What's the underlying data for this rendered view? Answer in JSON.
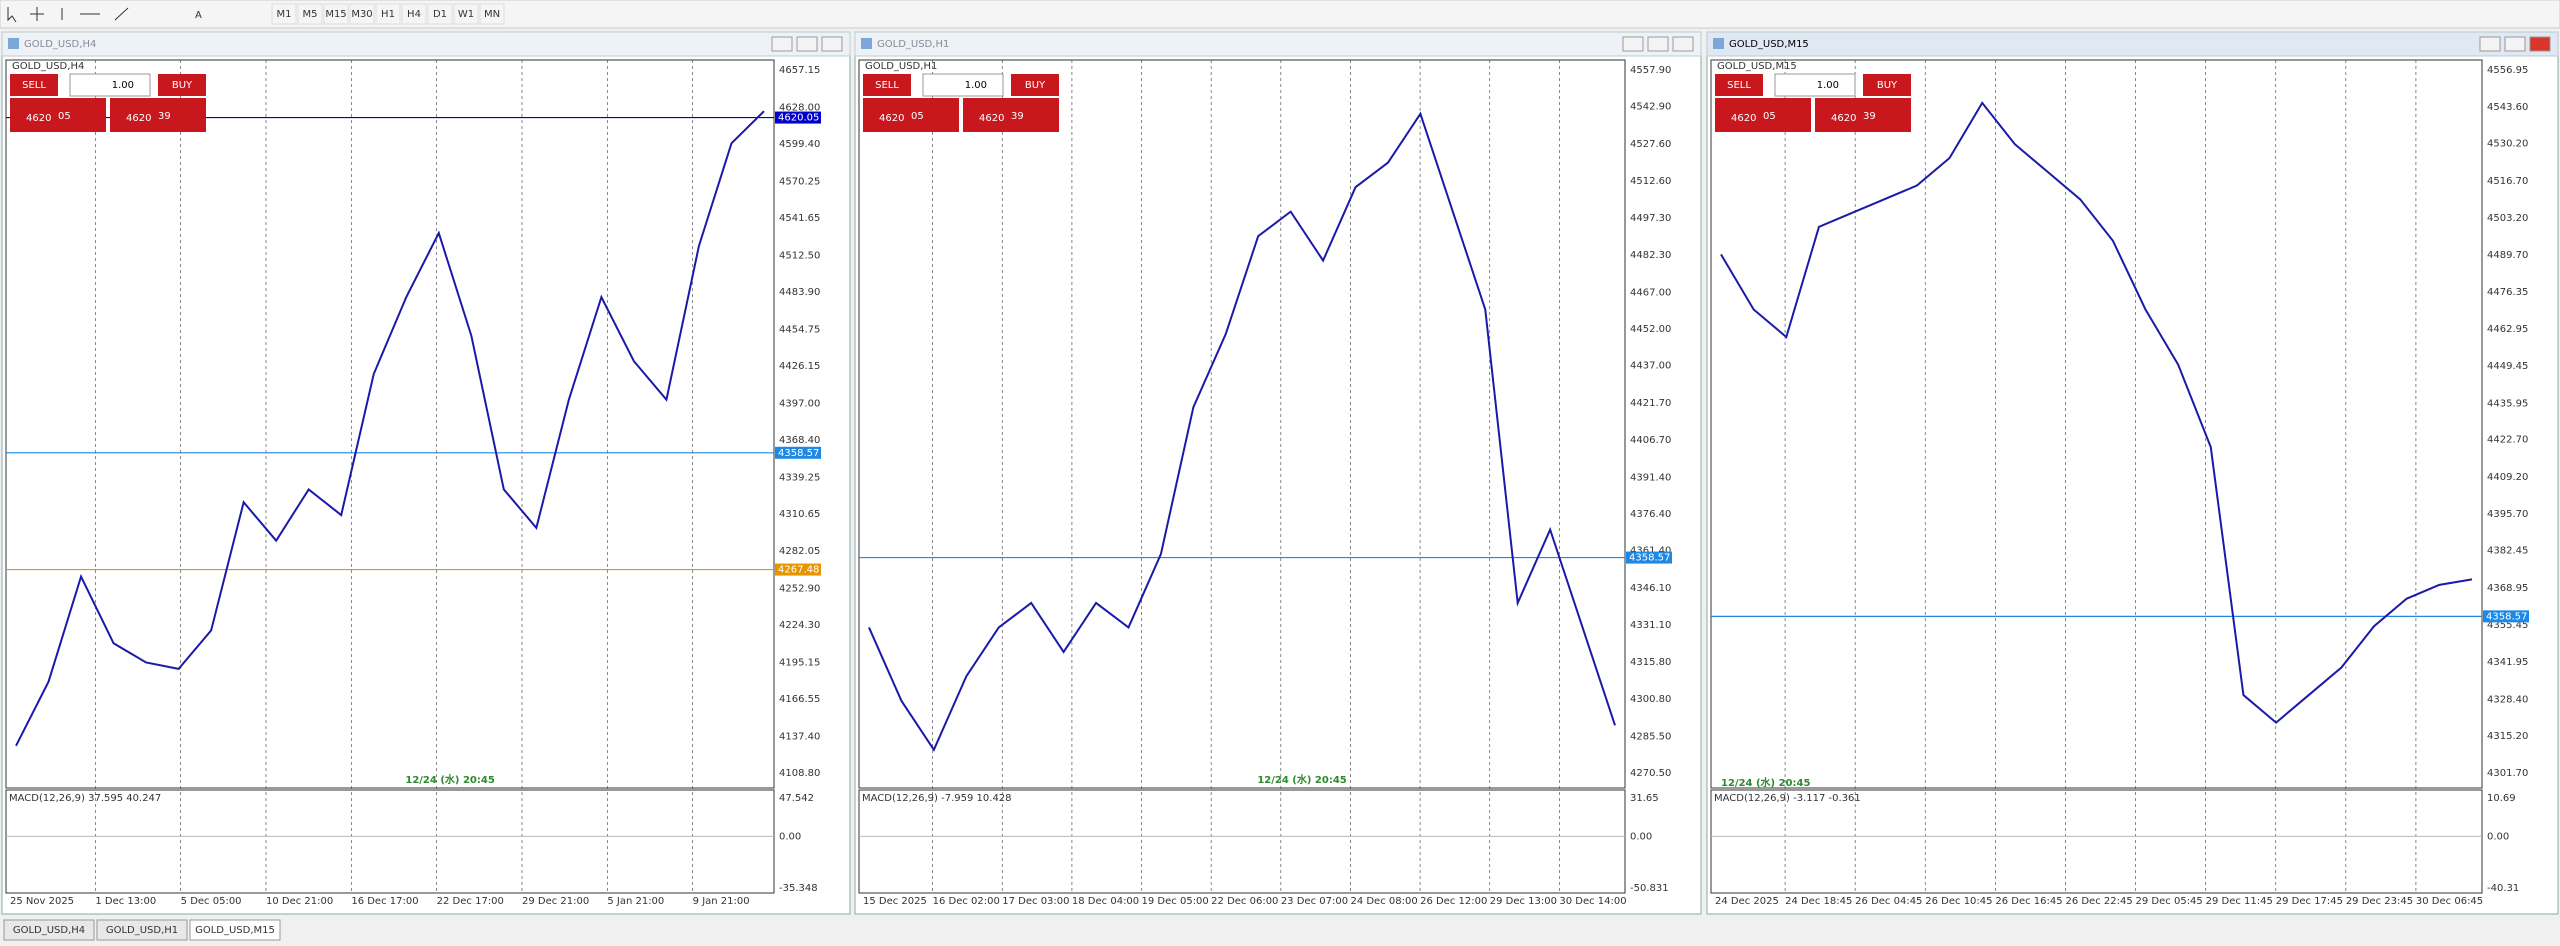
{
  "toolbar": {
    "timeframes": [
      "M1",
      "M5",
      "M15",
      "M30",
      "H1",
      "H4",
      "D1",
      "W1",
      "MN"
    ]
  },
  "windows": [
    {
      "title": "GOLD_USD,H4",
      "symbol": "GOLD_USD,H4",
      "sell": "SELL",
      "buy": "BUY",
      "lot": "1.00",
      "bid_small": "4620",
      "bid_big": "05",
      "ask_small": "4620",
      "ask_big": "39",
      "price_ticks": [
        "4657.15",
        "4628.00",
        "4599.40",
        "4570.25",
        "4541.65",
        "4512.50",
        "4483.90",
        "4454.75",
        "4426.15",
        "4397.00",
        "4368.40",
        "4339.25",
        "4310.65",
        "4282.05",
        "4252.90",
        "4224.30",
        "4195.15",
        "4166.55",
        "4137.40",
        "4108.80"
      ],
      "markers": [
        {
          "label": "4620.05",
          "color": "#0000cc"
        },
        {
          "label": "4358.57",
          "color": "#1e88e5"
        },
        {
          "label": "4267.48",
          "color": "#e69500"
        }
      ],
      "macd_label": "MACD(12,26,9) 37.595 40.247",
      "macd_ticks": [
        "47.542",
        "0.00",
        "-35.348"
      ],
      "time_ticks": [
        "25 Nov 2025",
        "1 Dec 13:00",
        "5 Dec 05:00",
        "10 Dec 21:00",
        "16 Dec 17:00",
        "22 Dec 17:00",
        "29 Dec 21:00",
        "5 Jan 21:00",
        "9 Jan 21:00"
      ],
      "stamp": "12/24 (水) 20:45",
      "closes": [
        4130,
        4180,
        4262,
        4210,
        4195,
        4190,
        4220,
        4320,
        4290,
        4330,
        4310,
        4420,
        4480,
        4530,
        4450,
        4330,
        4300,
        4400,
        4480,
        4430,
        4400,
        4520,
        4600,
        4625
      ]
    },
    {
      "title": "GOLD_USD,H1",
      "symbol": "GOLD_USD,H1",
      "sell": "SELL",
      "buy": "BUY",
      "lot": "1.00",
      "bid_small": "4620",
      "bid_big": "05",
      "ask_small": "4620",
      "ask_big": "39",
      "price_ticks": [
        "4557.90",
        "4542.90",
        "4527.60",
        "4512.60",
        "4497.30",
        "4482.30",
        "4467.00",
        "4452.00",
        "4437.00",
        "4421.70",
        "4406.70",
        "4391.40",
        "4376.40",
        "4361.40",
        "4346.10",
        "4331.10",
        "4315.80",
        "4300.80",
        "4285.50",
        "4270.50"
      ],
      "markers": [
        {
          "label": "4358.57",
          "color": "#1e88e5"
        }
      ],
      "macd_label": "MACD(12,26,9) -7.959 10.428",
      "macd_ticks": [
        "31.65",
        "0.00",
        "-50.831"
      ],
      "time_ticks": [
        "15 Dec 2025",
        "16 Dec 02:00",
        "17 Dec 03:00",
        "18 Dec 04:00",
        "19 Dec 05:00",
        "22 Dec 06:00",
        "23 Dec 07:00",
        "24 Dec 08:00",
        "26 Dec 12:00",
        "29 Dec 13:00",
        "30 Dec 14:00"
      ],
      "stamp": "12/24 (水) 20:45",
      "closes": [
        4330,
        4300,
        4280,
        4310,
        4330,
        4340,
        4320,
        4340,
        4330,
        4360,
        4420,
        4450,
        4490,
        4500,
        4480,
        4510,
        4520,
        4540,
        4500,
        4460,
        4340,
        4370,
        4330,
        4290
      ]
    },
    {
      "title": "GOLD_USD,M15",
      "symbol": "GOLD_USD,M15",
      "sell": "SELL",
      "buy": "BUY",
      "lot": "1.00",
      "bid_small": "4620",
      "bid_big": "05",
      "ask_small": "4620",
      "ask_big": "39",
      "price_ticks": [
        "4556.95",
        "4543.60",
        "4530.20",
        "4516.70",
        "4503.20",
        "4489.70",
        "4476.35",
        "4462.95",
        "4449.45",
        "4435.95",
        "4422.70",
        "4409.20",
        "4395.70",
        "4382.45",
        "4368.95",
        "4355.45",
        "4341.95",
        "4328.40",
        "4315.20",
        "4301.70"
      ],
      "markers": [
        {
          "label": "4358.57",
          "color": "#1e88e5"
        }
      ],
      "macd_label": "MACD(12,26,9) -3.117 -0.361",
      "macd_ticks": [
        "10.69",
        "0.00",
        "-40.31"
      ],
      "time_ticks": [
        "24 Dec 2025",
        "24 Dec 18:45",
        "26 Dec 04:45",
        "26 Dec 10:45",
        "26 Dec 16:45",
        "26 Dec 22:45",
        "29 Dec 05:45",
        "29 Dec 11:45",
        "29 Dec 17:45",
        "29 Dec 23:45",
        "30 Dec 06:45"
      ],
      "stamp": "12/24 (水) 20:45",
      "closes": [
        4490,
        4470,
        4460,
        4500,
        4505,
        4510,
        4515,
        4525,
        4545,
        4530,
        4520,
        4510,
        4495,
        4470,
        4450,
        4420,
        4330,
        4320,
        4330,
        4340,
        4355,
        4365,
        4370,
        4372
      ]
    }
  ],
  "tabs": [
    "GOLD_USD,H4",
    "GOLD_USD,H1",
    "GOLD_USD,M15"
  ]
}
